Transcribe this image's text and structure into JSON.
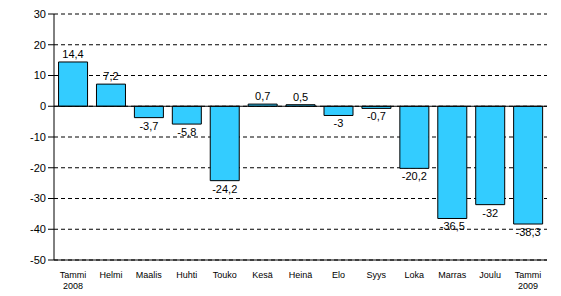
{
  "chart_data": {
    "type": "bar",
    "categories": [
      "Tammi 2008",
      "Helmi",
      "Maalis",
      "Huhti",
      "Touko",
      "Kesä",
      "Heinä",
      "Elo",
      "Syys",
      "Loka",
      "Marras",
      "Joulu",
      "Tammi 2009"
    ],
    "values": [
      14.4,
      7.2,
      -3.7,
      -5.8,
      -24.2,
      0.7,
      0.5,
      -3,
      -0.7,
      -20.2,
      -36.5,
      -32,
      -38.3
    ],
    "value_labels": [
      "14,4",
      "7,2",
      "-3,7",
      "-5,8",
      "-24,2",
      "0,7",
      "0,5",
      "-3",
      "-0,7",
      "-20,2",
      "-36,5",
      "-32",
      "-38,3"
    ],
    "color": "#33ccff",
    "ylim": [
      -50,
      30
    ],
    "yticks": [
      -50,
      -40,
      -30,
      -20,
      -10,
      0,
      10,
      20,
      30
    ],
    "grid": true,
    "data_labels": true
  }
}
